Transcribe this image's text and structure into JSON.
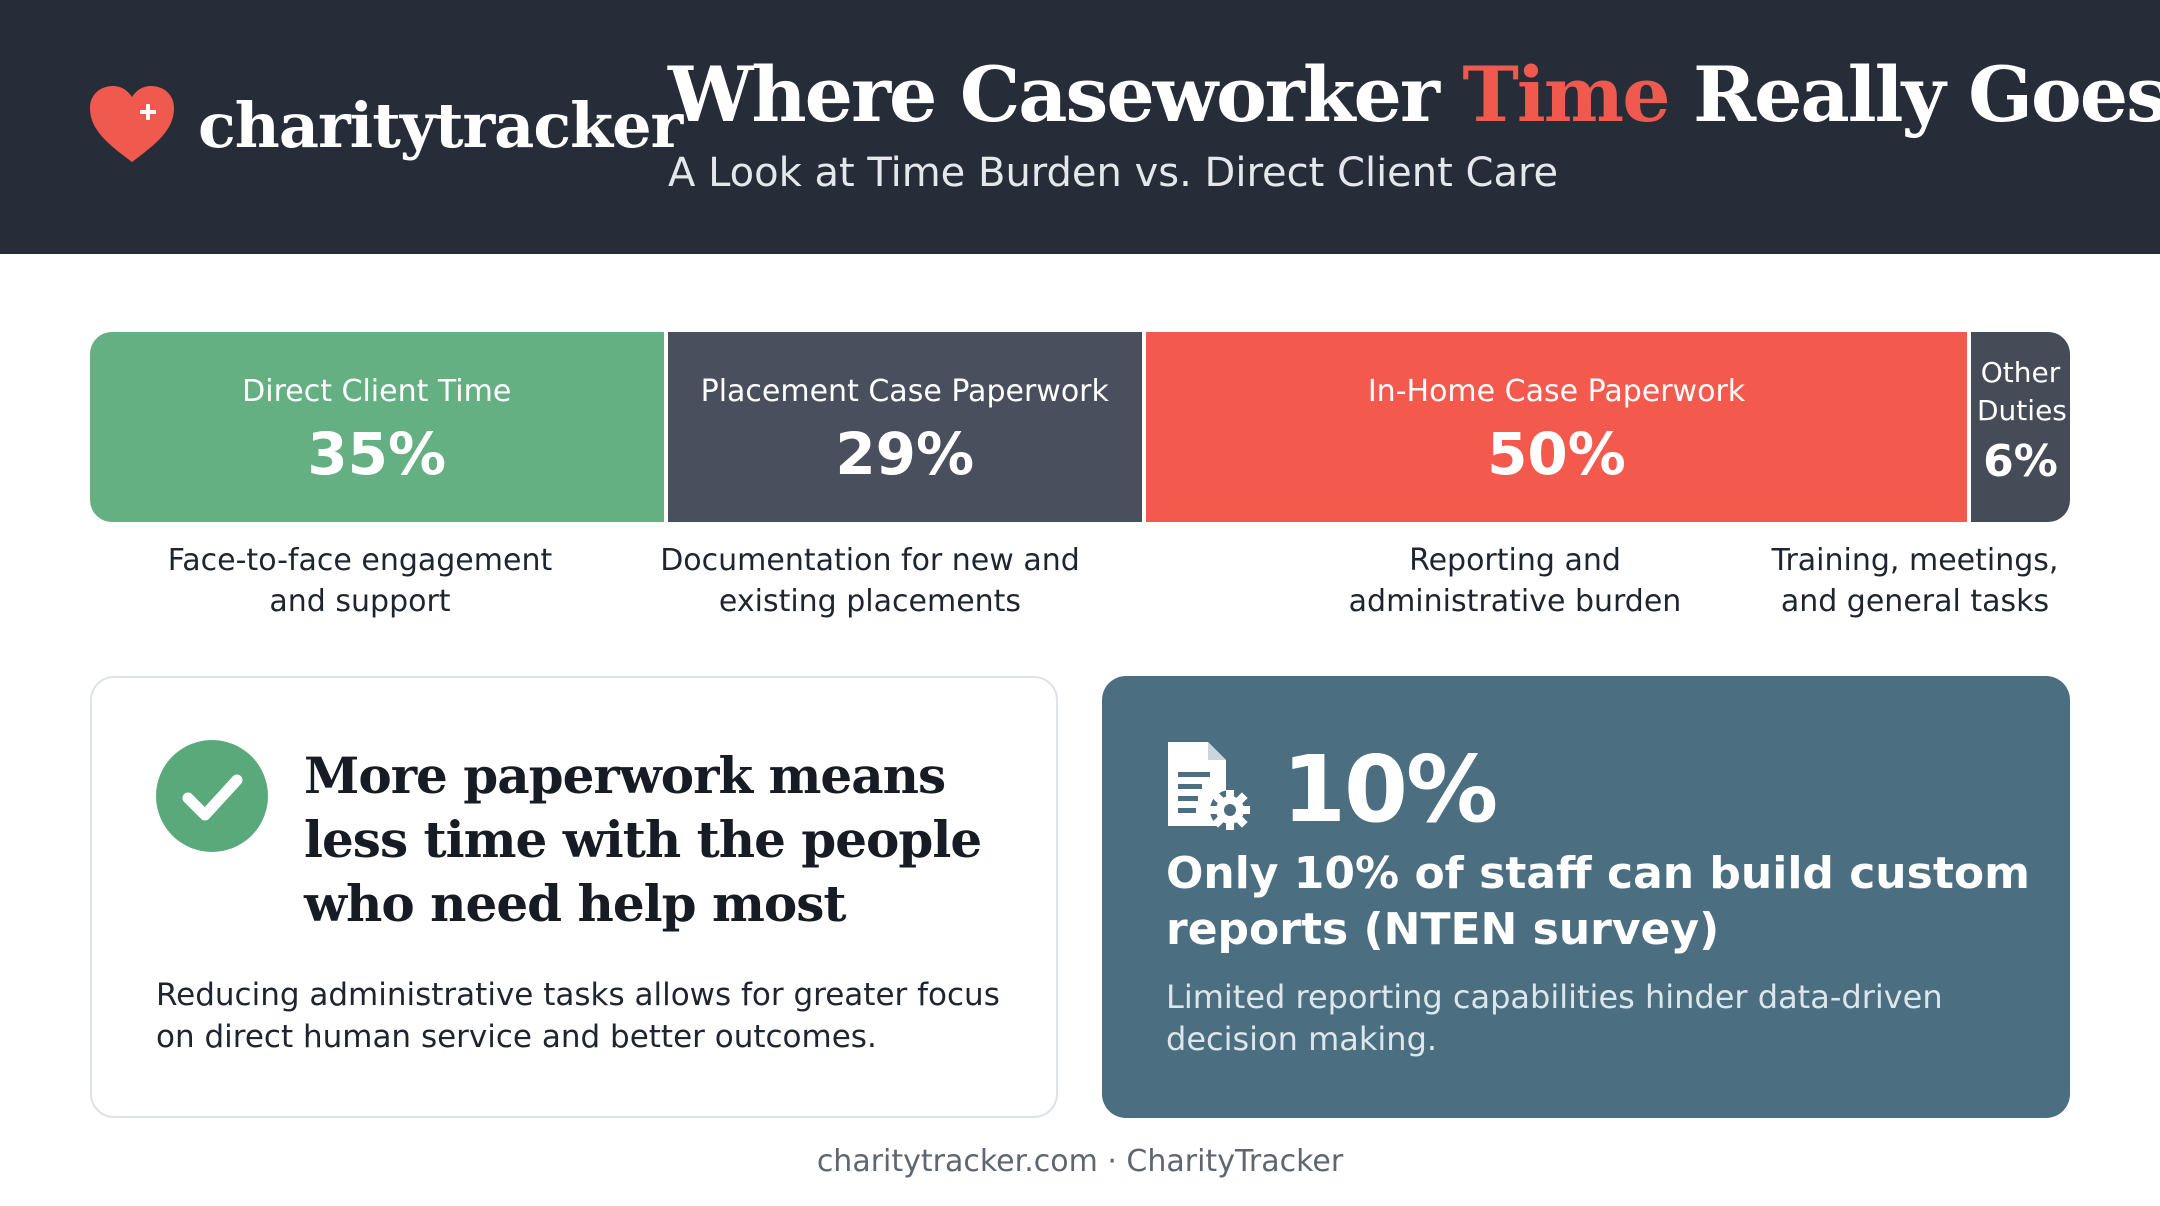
{
  "brand": {
    "name": "charitytracker",
    "icon": "heart-plus-icon",
    "color": "#f05a4e"
  },
  "header": {
    "title_before": "Where Caseworker ",
    "title_accent": "Time",
    "title_after": " Really Goes",
    "subtitle": "A Look at Time Burden vs. Direct Client Care"
  },
  "chart_data": {
    "type": "bar",
    "orientation": "horizontal-stacked",
    "categories": [
      "Direct Client Time",
      "Placement Case Paperwork",
      "In-Home Case Paperwork",
      "Other Duties"
    ],
    "values": [
      35,
      29,
      50,
      6
    ],
    "value_labels": [
      "35%",
      "29%",
      "50%",
      "6%"
    ],
    "descriptions": [
      "Face-to-face engagement and support",
      "Documentation for new and existing placements",
      "Reporting and administrative burden",
      "Training, meetings, and general tasks"
    ],
    "colors": [
      "#65b083",
      "#4a4f5e",
      "#f3594c",
      "#464b58"
    ]
  },
  "card_left": {
    "icon": "check-circle-icon",
    "title": "More paperwork means less time with the people who need help most",
    "text": "Reducing administrative tasks allows for greater focus on direct human service and better outcomes."
  },
  "card_right": {
    "icon": "document-gear-icon",
    "stat": "10%",
    "title": "Only 10% of staff can build custom reports (NTEN survey)",
    "text": "Limited reporting capabilities hinder data-driven decision making."
  },
  "footer": {
    "text": "charitytracker.com · CharityTracker"
  }
}
